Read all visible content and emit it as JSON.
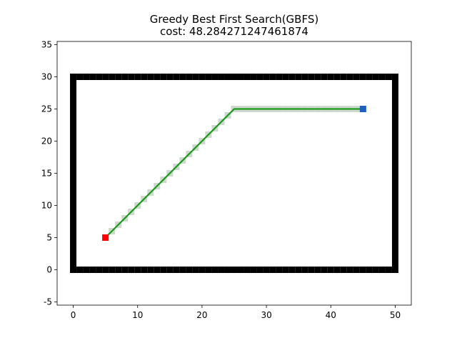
{
  "chart_data": {
    "type": "scatter",
    "title_lines": [
      "Greedy Best First Search(GBFS)",
      "cost: 48.284271247461874"
    ],
    "xlabel": "",
    "ylabel": "",
    "xlim": [
      -2.5,
      52.5
    ],
    "ylim": [
      -5.5,
      35.5
    ],
    "x_ticks": [
      0,
      10,
      20,
      30,
      40,
      50
    ],
    "y_ticks": [
      -5,
      0,
      5,
      10,
      15,
      20,
      25,
      30,
      35
    ],
    "grid": false,
    "obstacles": {
      "color": "#000000",
      "boundary": {
        "x_min": 0,
        "x_max": 50,
        "y_min": 0,
        "y_max": 30
      }
    },
    "visited": {
      "color": "#cfd8cf",
      "points": [
        [
          5,
          5
        ],
        [
          6,
          6
        ],
        [
          7,
          7
        ],
        [
          8,
          8
        ],
        [
          9,
          9
        ],
        [
          10,
          10
        ],
        [
          11,
          11
        ],
        [
          12,
          12
        ],
        [
          13,
          13
        ],
        [
          14,
          14
        ],
        [
          15,
          15
        ],
        [
          16,
          16
        ],
        [
          17,
          17
        ],
        [
          18,
          18
        ],
        [
          19,
          19
        ],
        [
          20,
          20
        ],
        [
          21,
          21
        ],
        [
          22,
          22
        ],
        [
          23,
          23
        ],
        [
          24,
          24
        ],
        [
          25,
          25
        ],
        [
          26,
          25
        ],
        [
          27,
          25
        ],
        [
          28,
          25
        ],
        [
          29,
          25
        ],
        [
          30,
          25
        ],
        [
          31,
          25
        ],
        [
          32,
          25
        ],
        [
          33,
          25
        ],
        [
          34,
          25
        ],
        [
          35,
          25
        ],
        [
          36,
          25
        ],
        [
          37,
          25
        ],
        [
          38,
          25
        ],
        [
          39,
          25
        ],
        [
          40,
          25
        ],
        [
          41,
          25
        ],
        [
          42,
          25
        ],
        [
          43,
          25
        ],
        [
          44,
          25
        ],
        [
          45,
          25
        ]
      ]
    },
    "path": {
      "color": "#1a9a1a",
      "points": [
        [
          5,
          5
        ],
        [
          25,
          25
        ],
        [
          45,
          25
        ]
      ]
    },
    "start": {
      "x": 5,
      "y": 5,
      "color": "#ff0000"
    },
    "goal": {
      "x": 45,
      "y": 25,
      "color": "#1f5fbf"
    }
  }
}
